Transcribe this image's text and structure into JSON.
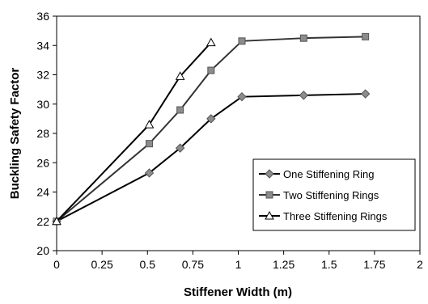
{
  "chart_data": {
    "type": "line",
    "title": "",
    "xlabel": "Stiffener Width (m)",
    "ylabel": "Buckling Safety Factor",
    "xlim": [
      0,
      2
    ],
    "ylim": [
      20,
      36
    ],
    "xticks": [
      "0",
      "0.25",
      "0.5",
      "0.75",
      "1",
      "1.25",
      "1.5",
      "1.75",
      "2"
    ],
    "yticks": [
      "20",
      "22",
      "24",
      "26",
      "28",
      "30",
      "32",
      "34",
      "36"
    ],
    "grid": false,
    "legend_position": "lower-right",
    "series": [
      {
        "name": "One Stiffening Ring",
        "marker": "diamond",
        "color": "#000000",
        "marker_fill": "#8c8c8c",
        "x": [
          0,
          0.51,
          0.68,
          0.85,
          1.02,
          1.36,
          1.7
        ],
        "y": [
          22,
          25.3,
          27,
          29,
          30.5,
          30.6,
          30.7
        ]
      },
      {
        "name": "Two Stiffening Rings",
        "marker": "square",
        "color": "#333333",
        "marker_fill": "#8c8c8c",
        "x": [
          0,
          0.51,
          0.68,
          0.85,
          1.02,
          1.36,
          1.7
        ],
        "y": [
          22,
          27.3,
          29.6,
          32.3,
          34.3,
          34.5,
          34.6
        ]
      },
      {
        "name": "Three Stiffening Rings",
        "marker": "triangle",
        "color": "#000000",
        "marker_fill": "#ffffff",
        "x": [
          0,
          0.51,
          0.68,
          0.85
        ],
        "y": [
          22,
          28.6,
          31.9,
          34.2
        ]
      }
    ]
  }
}
